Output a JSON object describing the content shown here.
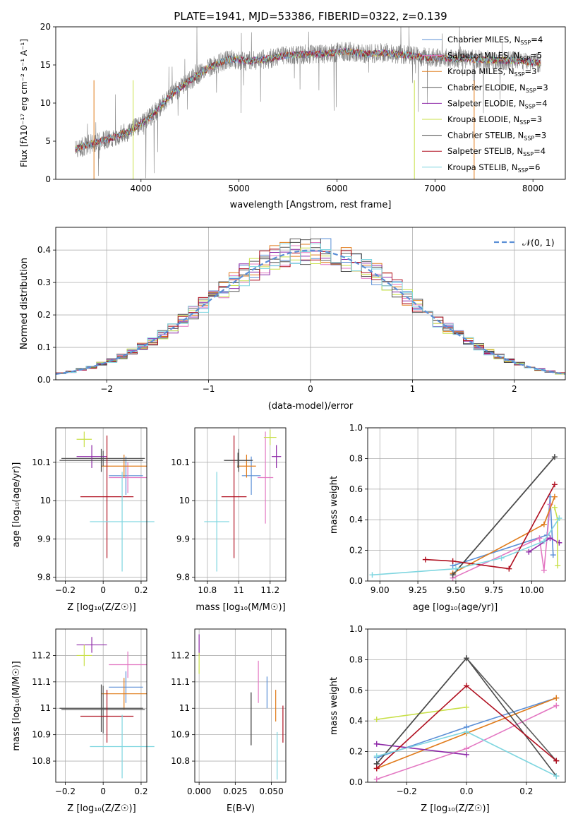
{
  "title": "PLATE=1941, MJD=53386, FIBERID=0322, z=0.139",
  "series_colors": [
    "#5b8fd6",
    "#e377c2",
    "#e07b1a",
    "#5a5a5a",
    "#8e2aa8",
    "#c9e04a",
    "#4a4a4a",
    "#b01020",
    "#7fd6e0"
  ],
  "chart_data": [
    {
      "type": "line",
      "name": "spectrum",
      "title": "PLATE=1941, MJD=53386, FIBERID=0322, z=0.139",
      "xlabel": "wavelength [Angstrom, rest frame]",
      "ylabel": "Flux [fλ10⁻¹⁷ erg cm⁻² s⁻¹ A⁻¹]",
      "xlim": [
        3130,
        8330
      ],
      "ylim": [
        0,
        20
      ],
      "xticks": [
        4000,
        5000,
        6000,
        7000,
        8000
      ],
      "yticks": [
        0,
        5,
        10,
        15,
        20
      ],
      "legend_position": "right",
      "legend": [
        "Chabrier MILES, N_SSP=4",
        "Salpeter MILES, N_SSP=5",
        "Kroupa MILES, N_SSP=3",
        "Chabrier ELODIE, N_SSP=3",
        "Salpeter ELODIE, N_SSP=4",
        "Kroupa ELODIE, N_SSP=3",
        "Chabrier STELIB, N_SSP=3",
        "Salpeter STELIB, N_SSP=4",
        "Kroupa STELIB, N_SSP=6"
      ],
      "x": [
        3330,
        3500,
        3700,
        3900,
        4100,
        4300,
        4500,
        4700,
        4900,
        5100,
        5300,
        5500,
        5700,
        5900,
        6100,
        6300,
        6500,
        6700,
        6900,
        7100,
        7300,
        7500,
        7700,
        7900,
        8080
      ],
      "y": [
        4.0,
        4.7,
        5.4,
        6.4,
        8.2,
        11.0,
        13.0,
        14.7,
        15.8,
        15.5,
        15.8,
        16.3,
        16.4,
        16.5,
        16.8,
        16.4,
        16.6,
        16.3,
        16.0,
        15.9,
        15.8,
        15.7,
        15.6,
        15.5,
        15.2
      ]
    },
    {
      "type": "histogram",
      "name": "residuals",
      "xlabel": "(data-model)/error",
      "ylabel": "Normed distribution",
      "xlim": [
        -2.5,
        2.5
      ],
      "ylim": [
        0,
        0.47
      ],
      "xticks": [
        -2,
        -1,
        0,
        1,
        2
      ],
      "yticks": [
        0.0,
        0.1,
        0.2,
        0.3,
        0.4
      ],
      "legend": [
        "𝒩(0, 1)"
      ],
      "legend_position": "top-right",
      "grid": true,
      "curve": "normal(0,1)"
    },
    {
      "type": "scatter",
      "name": "age-vs-Z",
      "xlabel": "Z [log₁₀(Z/Z☉)]",
      "ylabel": "age  [log₁₀(age/yr)]",
      "xlim": [
        -0.25,
        0.23
      ],
      "ylim": [
        9.79,
        10.19
      ],
      "xticks": [
        -0.2,
        0.0,
        0.2
      ],
      "yticks": [
        9.8,
        9.9,
        10.0,
        10.1
      ],
      "grid": true,
      "points": [
        {
          "x": 0.12,
          "y": 10.065,
          "xerr": 0.09,
          "yerr": 0.05
        },
        {
          "x": 0.13,
          "y": 10.06,
          "xerr": 0.1,
          "yerr": 0.04
        },
        {
          "x": 0.11,
          "y": 10.09,
          "xerr": 0.12,
          "yerr": 0.03
        },
        {
          "x": 0.0,
          "y": 10.11,
          "xerr": 0.22,
          "yerr": 0.02
        },
        {
          "x": -0.06,
          "y": 10.115,
          "xerr": 0.08,
          "yerr": 0.03
        },
        {
          "x": -0.1,
          "y": 10.16,
          "xerr": 0.04,
          "yerr": 0.02
        },
        {
          "x": -0.01,
          "y": 10.105,
          "xerr": 0.22,
          "yerr": 0.03
        },
        {
          "x": 0.02,
          "y": 10.01,
          "xerr": 0.14,
          "yerr": 0.16
        },
        {
          "x": 0.1,
          "y": 9.945,
          "xerr": 0.17,
          "yerr": 0.13
        }
      ]
    },
    {
      "type": "scatter",
      "name": "age-vs-mass",
      "xlabel": "mass [log₁₀(M/M☉)]",
      "ylabel": "",
      "xlim": [
        10.72,
        11.3
      ],
      "ylim": [
        9.79,
        10.19
      ],
      "xticks": [
        10.8,
        11.0,
        11.2
      ],
      "yticks": [
        9.8,
        9.9,
        10.0,
        10.1
      ],
      "grid": true,
      "points": [
        {
          "x": 11.08,
          "y": 10.065,
          "xerr": 0.06,
          "yerr": 0.05
        },
        {
          "x": 11.17,
          "y": 10.06,
          "xerr": 0.05,
          "yerr": 0.12
        },
        {
          "x": 11.05,
          "y": 10.09,
          "xerr": 0.06,
          "yerr": 0.03
        },
        {
          "x": 10.995,
          "y": 10.105,
          "xerr": 0.09,
          "yerr": 0.02
        },
        {
          "x": 11.24,
          "y": 10.115,
          "xerr": 0.03,
          "yerr": 0.03
        },
        {
          "x": 11.2,
          "y": 10.165,
          "xerr": 0.04,
          "yerr": 0.02
        },
        {
          "x": 11.0,
          "y": 10.105,
          "xerr": 0.09,
          "yerr": 0.03
        },
        {
          "x": 10.97,
          "y": 10.01,
          "xerr": 0.08,
          "yerr": 0.16
        },
        {
          "x": 10.86,
          "y": 9.945,
          "xerr": 0.08,
          "yerr": 0.13
        }
      ]
    },
    {
      "type": "line",
      "name": "mass-weight-vs-age",
      "xlabel": "age  [log₁₀(age/yr)]",
      "ylabel": "mass weight",
      "xlim": [
        8.92,
        10.22
      ],
      "ylim": [
        0,
        1.0
      ],
      "xticks": [
        9.0,
        9.25,
        9.5,
        9.75,
        10.0
      ],
      "xticklabels": [
        "9.00",
        "9.25",
        "9.50",
        "9.75",
        "10.00"
      ],
      "yticks": [
        0.0,
        0.2,
        0.4,
        0.6,
        0.8,
        1.0
      ],
      "grid": true,
      "series": [
        {
          "x": [
            9.48,
            10.1,
            10.12,
            10.14
          ],
          "y": [
            0.1,
            0.3,
            0.55,
            0.17
          ]
        },
        {
          "x": [
            9.48,
            10.05,
            10.08,
            10.12
          ],
          "y": [
            0.02,
            0.28,
            0.07,
            0.5
          ]
        },
        {
          "x": [
            9.48,
            10.08,
            10.15
          ],
          "y": [
            0.05,
            0.37,
            0.55
          ]
        },
        {
          "x": [
            9.48,
            10.15
          ],
          "y": [
            0.04,
            0.81
          ]
        },
        {
          "x": [
            9.98,
            10.12,
            10.18
          ],
          "y": [
            0.19,
            0.28,
            0.25
          ]
        },
        {
          "x": [
            10.15,
            10.17,
            10.17
          ],
          "y": [
            0.48,
            0.4,
            0.1
          ]
        },
        {
          "x": [
            9.48,
            10.15
          ],
          "y": [
            0.04,
            0.81
          ]
        },
        {
          "x": [
            9.3,
            9.48,
            9.85,
            10.15
          ],
          "y": [
            0.14,
            0.13,
            0.08,
            0.63
          ]
        },
        {
          "x": [
            8.95,
            9.5,
            9.8,
            10.08,
            10.18
          ],
          "y": [
            0.04,
            0.08,
            0.15,
            0.26,
            0.41
          ]
        }
      ]
    },
    {
      "type": "scatter",
      "name": "mass-vs-Z",
      "xlabel": "Z [log₁₀(Z/Z☉)]",
      "ylabel": "mass [log₁₀(M/M☉)]",
      "xlim": [
        -0.25,
        0.23
      ],
      "ylim": [
        10.72,
        11.3
      ],
      "xticks": [
        -0.2,
        0.0,
        0.2
      ],
      "yticks": [
        10.8,
        10.9,
        11.0,
        11.1,
        11.2
      ],
      "grid": true,
      "points": [
        {
          "x": 0.12,
          "y": 11.08,
          "xerr": 0.09,
          "yerr": 0.06
        },
        {
          "x": 0.13,
          "y": 11.165,
          "xerr": 0.1,
          "yerr": 0.05
        },
        {
          "x": 0.11,
          "y": 11.055,
          "xerr": 0.12,
          "yerr": 0.06
        },
        {
          "x": 0.0,
          "y": 10.995,
          "xerr": 0.22,
          "yerr": 0.09
        },
        {
          "x": -0.06,
          "y": 11.24,
          "xerr": 0.08,
          "yerr": 0.03
        },
        {
          "x": -0.1,
          "y": 11.2,
          "xerr": 0.04,
          "yerr": 0.04
        },
        {
          "x": -0.01,
          "y": 11.0,
          "xerr": 0.22,
          "yerr": 0.09
        },
        {
          "x": 0.02,
          "y": 10.97,
          "xerr": 0.14,
          "yerr": 0.1
        },
        {
          "x": 0.1,
          "y": 10.855,
          "xerr": 0.17,
          "yerr": 0.12
        }
      ]
    },
    {
      "type": "scatter",
      "name": "mass-vs-EBV",
      "xlabel": "E(B-V)",
      "ylabel": "",
      "xlim": [
        -0.003,
        0.06
      ],
      "ylim": [
        10.72,
        11.3
      ],
      "xticks": [
        0.0,
        0.025,
        0.05
      ],
      "xticklabels": [
        "0.000",
        "0.025",
        "0.050"
      ],
      "yticks": [
        10.8,
        10.9,
        11.0,
        11.1,
        11.2
      ],
      "grid": true,
      "points": [
        {
          "x": 0.047,
          "y": 11.06,
          "xerr": 0.0,
          "yerr": 0.06
        },
        {
          "x": 0.041,
          "y": 11.1,
          "xerr": 0.0,
          "yerr": 0.08
        },
        {
          "x": 0.053,
          "y": 11.01,
          "xerr": 0.0,
          "yerr": 0.06
        },
        {
          "x": 0.036,
          "y": 10.96,
          "xerr": 0.0,
          "yerr": 0.1
        },
        {
          "x": 0.0,
          "y": 11.24,
          "xerr": 0.0,
          "yerr": 0.04
        },
        {
          "x": 0.0,
          "y": 11.17,
          "xerr": 0.0,
          "yerr": 0.04
        },
        {
          "x": 0.036,
          "y": 10.96,
          "xerr": 0.0,
          "yerr": 0.1
        },
        {
          "x": 0.058,
          "y": 10.94,
          "xerr": 0.0,
          "yerr": 0.07
        },
        {
          "x": 0.054,
          "y": 10.82,
          "xerr": 0.0,
          "yerr": 0.09
        }
      ]
    },
    {
      "type": "line",
      "name": "mass-weight-vs-Z",
      "xlabel": "Z [log₁₀(Z/Z☉)]",
      "ylabel": "mass weight",
      "xlim": [
        -0.33,
        0.33
      ],
      "ylim": [
        0,
        1.0
      ],
      "xticks": [
        -0.2,
        0.0,
        0.2
      ],
      "xticklabels": [
        "−0.2",
        "0.0",
        "0.2"
      ],
      "yticks": [
        0.0,
        0.2,
        0.4,
        0.6,
        0.8,
        1.0
      ],
      "grid": true,
      "series": [
        {
          "x": [
            -0.3,
            0.0,
            0.3
          ],
          "y": [
            0.16,
            0.36,
            0.55
          ]
        },
        {
          "x": [
            -0.3,
            0.0,
            0.3
          ],
          "y": [
            0.02,
            0.22,
            0.5
          ]
        },
        {
          "x": [
            -0.3,
            0.0,
            0.3
          ],
          "y": [
            0.09,
            0.32,
            0.55
          ]
        },
        {
          "x": [
            -0.3,
            0.0,
            0.3
          ],
          "y": [
            0.12,
            0.81,
            0.14
          ]
        },
        {
          "x": [
            -0.3,
            0.0
          ],
          "y": [
            0.25,
            0.18
          ]
        },
        {
          "x": [
            -0.3,
            0.0
          ],
          "y": [
            0.41,
            0.49
          ]
        },
        {
          "x": [
            -0.3,
            0.0,
            0.3
          ],
          "y": [
            0.12,
            0.81,
            0.04
          ]
        },
        {
          "x": [
            -0.3,
            0.0,
            0.3
          ],
          "y": [
            0.09,
            0.63,
            0.14
          ]
        },
        {
          "x": [
            -0.3,
            0.0,
            0.3
          ],
          "y": [
            0.17,
            0.33,
            0.04
          ]
        }
      ]
    }
  ]
}
